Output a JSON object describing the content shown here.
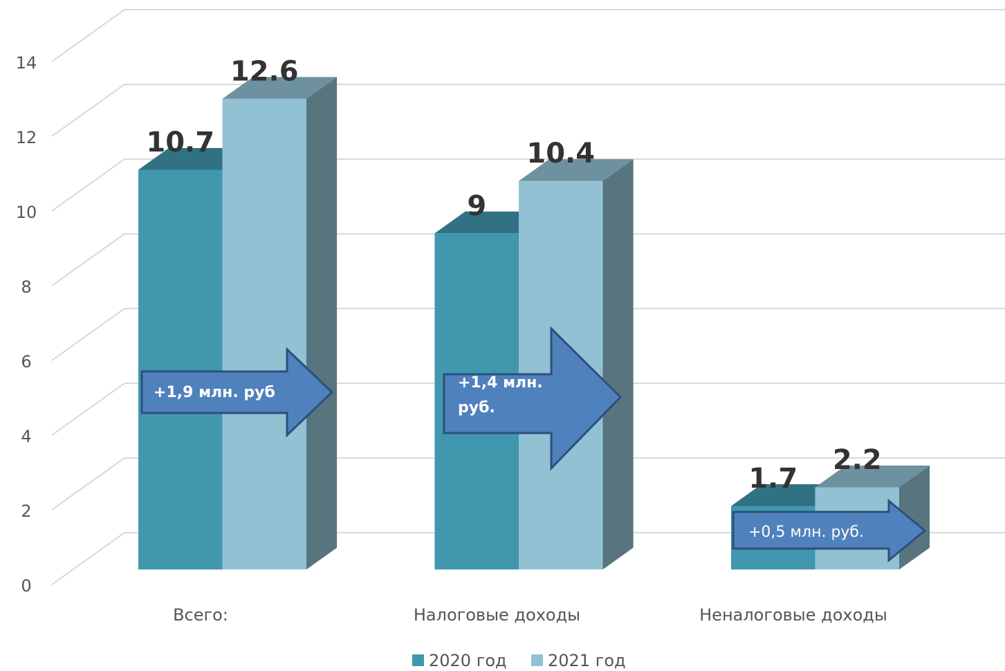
{
  "chart_data": {
    "type": "bar3d",
    "categories": [
      "Всего:",
      "Налоговые доходы",
      "Неналоговые доходы"
    ],
    "series": [
      {
        "name": "2020 год",
        "color": "#4097ae",
        "values": [
          10.7,
          9,
          1.7
        ]
      },
      {
        "name": "2021 год",
        "color": "#93c1d4",
        "values": [
          12.6,
          10.4,
          2.2
        ]
      }
    ],
    "ylim": [
      0,
      14
    ],
    "yticks": [
      0,
      2,
      4,
      6,
      8,
      10,
      12,
      14
    ],
    "grid": true,
    "legend": "bottom",
    "annotations": [
      "+1,9 млн. руб",
      "+1,4 млн. руб.",
      "+0,5 млн. руб."
    ]
  }
}
